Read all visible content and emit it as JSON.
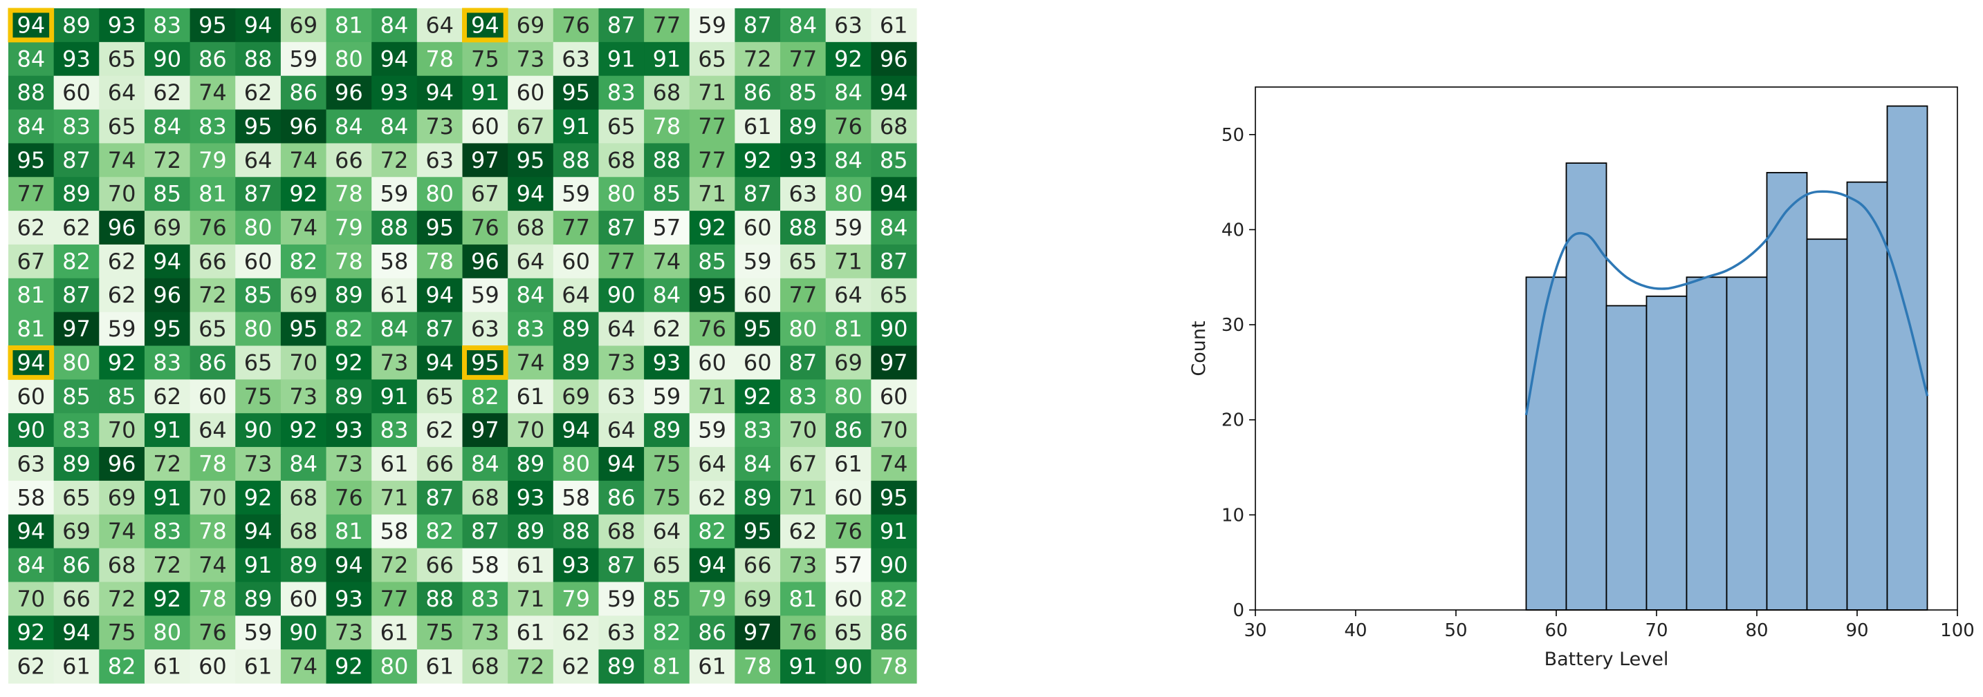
{
  "chart_data": [
    {
      "type": "heatmap",
      "colormap": "Greens",
      "value_range": [
        57,
        97
      ],
      "highlight_color": "#f5c400",
      "highlighted_cells": [
        [
          0,
          0
        ],
        [
          0,
          10
        ],
        [
          10,
          0
        ],
        [
          10,
          10
        ]
      ],
      "values": [
        [
          94,
          89,
          93,
          83,
          95,
          94,
          69,
          81,
          84,
          64,
          94,
          69,
          76,
          87,
          77,
          59,
          87,
          84,
          63,
          61
        ],
        [
          84,
          93,
          65,
          90,
          86,
          88,
          59,
          80,
          94,
          78,
          75,
          73,
          63,
          91,
          91,
          65,
          72,
          77,
          92,
          96
        ],
        [
          88,
          60,
          64,
          62,
          74,
          62,
          86,
          96,
          93,
          94,
          91,
          60,
          95,
          83,
          68,
          71,
          86,
          85,
          84,
          94
        ],
        [
          84,
          83,
          65,
          84,
          83,
          95,
          96,
          84,
          84,
          73,
          60,
          67,
          91,
          65,
          78,
          77,
          61,
          89,
          76,
          68
        ],
        [
          95,
          87,
          74,
          72,
          79,
          64,
          74,
          66,
          72,
          63,
          97,
          95,
          88,
          68,
          88,
          77,
          92,
          93,
          84,
          85
        ],
        [
          77,
          89,
          70,
          85,
          81,
          87,
          92,
          78,
          59,
          80,
          67,
          94,
          59,
          80,
          85,
          71,
          87,
          63,
          80,
          94
        ],
        [
          62,
          62,
          96,
          69,
          76,
          80,
          74,
          79,
          88,
          95,
          76,
          68,
          77,
          87,
          57,
          92,
          60,
          88,
          59,
          84
        ],
        [
          67,
          82,
          62,
          94,
          66,
          60,
          82,
          78,
          58,
          78,
          96,
          64,
          60,
          77,
          74,
          85,
          59,
          65,
          71,
          87
        ],
        [
          81,
          87,
          62,
          96,
          72,
          85,
          69,
          89,
          61,
          94,
          59,
          84,
          64,
          90,
          84,
          95,
          60,
          77,
          64,
          65
        ],
        [
          81,
          97,
          59,
          95,
          65,
          80,
          95,
          82,
          84,
          87,
          63,
          83,
          89,
          64,
          62,
          76,
          95,
          80,
          81,
          90
        ],
        [
          94,
          80,
          92,
          83,
          86,
          65,
          70,
          92,
          73,
          94,
          95,
          74,
          89,
          73,
          93,
          60,
          60,
          87,
          69,
          97
        ],
        [
          60,
          85,
          85,
          62,
          60,
          75,
          73,
          89,
          91,
          65,
          82,
          61,
          69,
          63,
          59,
          71,
          92,
          83,
          80,
          60
        ],
        [
          90,
          83,
          70,
          91,
          64,
          90,
          92,
          93,
          83,
          62,
          97,
          70,
          94,
          64,
          89,
          59,
          83,
          70,
          86,
          70
        ],
        [
          63,
          89,
          96,
          72,
          78,
          73,
          84,
          73,
          61,
          66,
          84,
          89,
          80,
          94,
          75,
          64,
          84,
          67,
          61,
          74
        ],
        [
          58,
          65,
          69,
          91,
          70,
          92,
          68,
          76,
          71,
          87,
          68,
          93,
          58,
          86,
          75,
          62,
          89,
          71,
          60,
          95
        ],
        [
          94,
          69,
          74,
          83,
          78,
          94,
          68,
          81,
          58,
          82,
          87,
          89,
          88,
          68,
          64,
          82,
          95,
          62,
          76,
          91
        ],
        [
          84,
          86,
          68,
          72,
          74,
          91,
          89,
          94,
          72,
          66,
          58,
          61,
          93,
          87,
          65,
          94,
          66,
          73,
          57,
          90
        ],
        [
          70,
          66,
          72,
          92,
          78,
          89,
          60,
          93,
          77,
          88,
          83,
          71,
          79,
          59,
          85,
          79,
          69,
          81,
          60,
          82
        ],
        [
          92,
          94,
          75,
          80,
          76,
          59,
          90,
          73,
          61,
          75,
          73,
          61,
          62,
          63,
          82,
          86,
          97,
          76,
          65,
          86
        ],
        [
          62,
          61,
          82,
          61,
          60,
          61,
          74,
          92,
          80,
          61,
          68,
          72,
          62,
          89,
          81,
          61,
          78,
          91,
          90,
          78
        ]
      ]
    },
    {
      "type": "bar",
      "subtype": "histogram_with_kde",
      "xlabel": "Battery Level",
      "ylabel": "Count",
      "xlim": [
        30,
        100
      ],
      "ylim": [
        0,
        55
      ],
      "xticks": [
        30,
        40,
        50,
        60,
        70,
        80,
        90,
        100
      ],
      "yticks": [
        0,
        10,
        20,
        30,
        40,
        50
      ],
      "bin_edges": [
        57,
        61,
        65,
        69,
        73,
        77,
        81,
        85,
        89,
        93,
        97
      ],
      "counts": [
        35,
        47,
        32,
        33,
        35,
        35,
        46,
        39,
        45,
        53
      ],
      "bar_color": "#8db3d6",
      "line_color": "#2e78b5",
      "kde": {
        "x": [
          57,
          59,
          61,
          63,
          65,
          67,
          69,
          71,
          73,
          75,
          77,
          79,
          81,
          83,
          85,
          87,
          89,
          91,
          93,
          95,
          97
        ],
        "y": [
          20.5,
          32,
          38.5,
          39.5,
          37,
          35,
          34,
          33.8,
          34.3,
          35,
          35.7,
          37,
          39,
          42,
          43.7,
          44,
          43.5,
          42,
          38,
          31,
          22.5
        ]
      },
      "grid": false
    }
  ]
}
